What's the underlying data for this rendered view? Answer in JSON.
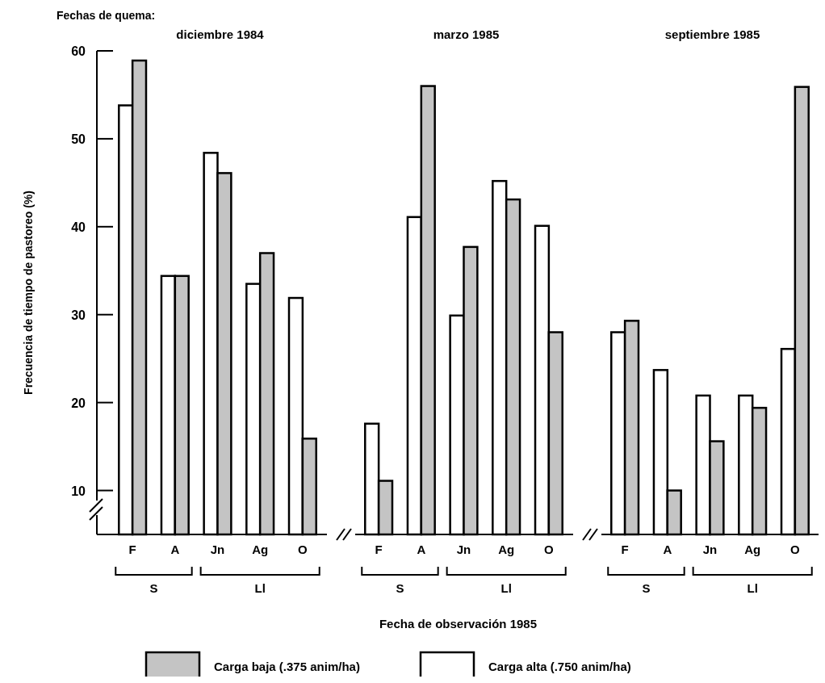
{
  "chart_data": [
    {
      "type": "bar",
      "subtitle": "Fechas de quema:",
      "title": "diciembre 1984",
      "ylabel": "Frecuencia de tiempo de pastoreo (%)",
      "categories": [
        "F",
        "A",
        "Jn",
        "Ag",
        "O"
      ],
      "ylim": [
        5,
        60
      ],
      "yticks": [
        10,
        20,
        30,
        40,
        50,
        60
      ],
      "annotations": [
        "S",
        "Ll"
      ],
      "series": [
        {
          "color": "#ffffff",
          "values": [
            53.8,
            34.4,
            48.4,
            33.5,
            31.9
          ]
        },
        {
          "color": "#c4c4c4",
          "values": [
            58.9,
            34.4,
            46.1,
            37.0,
            15.9
          ]
        }
      ]
    },
    {
      "type": "bar",
      "title": "marzo 1985",
      "xlabel": "Fecha de observación 1985",
      "categories": [
        "F",
        "A",
        "Jn",
        "Ag",
        "O"
      ],
      "ylim": [
        5,
        60
      ],
      "tick_labels": "x",
      "annotations": [
        "S",
        "Ll"
      ],
      "legend": "bottom",
      "series": [
        {
          "name": "Carga alta (.750 anim/ha)",
          "color": "#ffffff",
          "values": [
            17.6,
            41.1,
            29.9,
            45.2,
            40.1
          ]
        },
        {
          "name": "Carga baja (.375 anim/ha)",
          "color": "#c4c4c4",
          "values": [
            11.1,
            56.0,
            37.7,
            43.1,
            28.0
          ]
        }
      ]
    },
    {
      "type": "bar",
      "title": "septiembre 1985",
      "categories": [
        "F",
        "A",
        "Jn",
        "Ag",
        "O"
      ],
      "ylim": [
        5,
        60
      ],
      "tick_labels": "x",
      "annotations": [
        "S",
        "Ll"
      ],
      "series": [
        {
          "color": "#ffffff",
          "values": [
            28.0,
            23.7,
            20.8,
            20.8,
            26.1
          ]
        },
        {
          "color": "#c4c4c4",
          "values": [
            29.3,
            10.0,
            15.6,
            19.4,
            55.9
          ]
        }
      ]
    }
  ]
}
